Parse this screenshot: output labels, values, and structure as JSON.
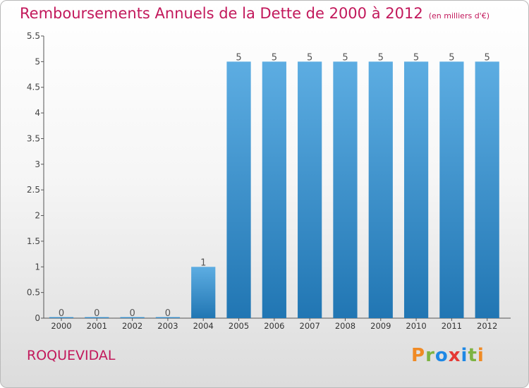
{
  "header": {
    "title": "Remboursements Annuels de la Dette de 2000 à 2012",
    "unit": "(en milliers d'€)"
  },
  "footer": {
    "location": "ROQUEVIDAL",
    "logo": "Proxiti"
  },
  "colors": {
    "title": "#c2185b",
    "bar_top": "#5dade2",
    "bar_bottom": "#2176b3",
    "logo_letters": [
      "#f08a24",
      "#7cb342",
      "#1e88e5",
      "#e53935",
      "#1e88e5",
      "#7cb342",
      "#f08a24"
    ]
  },
  "chart_data": {
    "type": "bar",
    "title": "Remboursements Annuels de la Dette de 2000 à 2012",
    "categories": [
      "2000",
      "2001",
      "2002",
      "2003",
      "2004",
      "2005",
      "2006",
      "2007",
      "2008",
      "2009",
      "2010",
      "2011",
      "2012"
    ],
    "values": [
      0,
      0,
      0,
      0,
      1,
      5,
      5,
      5,
      5,
      5,
      5,
      5,
      5
    ],
    "data_labels": [
      "0",
      "0",
      "0",
      "0",
      "1",
      "5",
      "5",
      "5",
      "5",
      "5",
      "5",
      "5",
      "5"
    ],
    "ylim": [
      0,
      5.5
    ],
    "yticks": [
      "0",
      "0.5",
      "1",
      "1.5",
      "2",
      "2.5",
      "3",
      "3.5",
      "4",
      "4.5",
      "5",
      "5.5"
    ],
    "ytick_values": [
      0,
      0.5,
      1,
      1.5,
      2,
      2.5,
      3,
      3.5,
      4,
      4.5,
      5,
      5.5
    ],
    "grid": false,
    "legend": "none"
  }
}
